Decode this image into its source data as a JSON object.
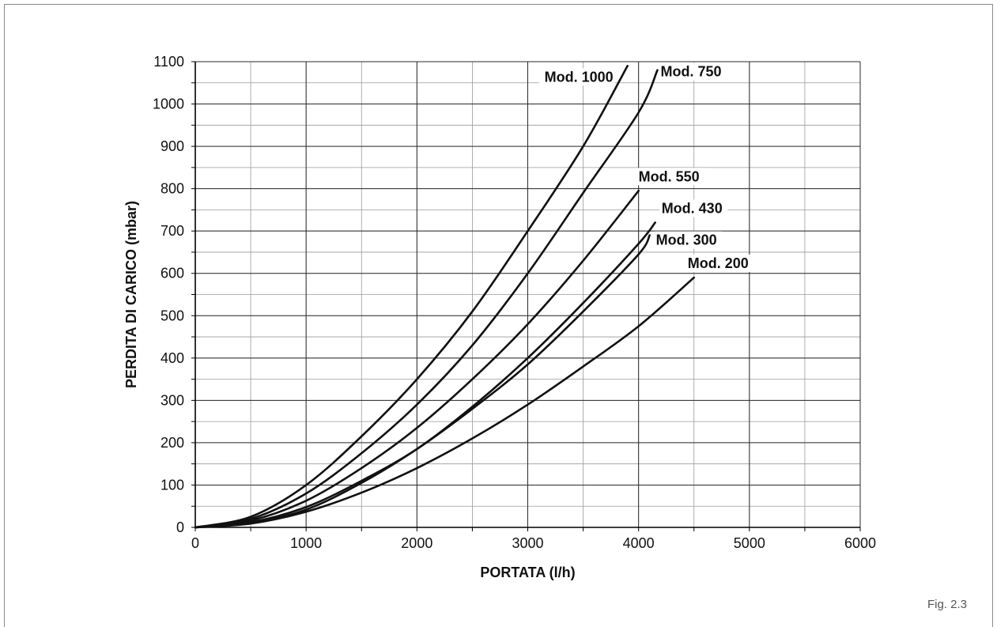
{
  "figure_label": "Fig. 2.3",
  "chart_data": {
    "type": "line",
    "xlabel": "PORTATA (l/h)",
    "ylabel": "PERDITA DI CARICO (mbar)",
    "xlim": [
      0,
      6000
    ],
    "ylim": [
      0,
      1100
    ],
    "x_ticks": [
      0,
      1000,
      2000,
      3000,
      4000,
      5000,
      6000
    ],
    "y_ticks": [
      0,
      100,
      200,
      300,
      400,
      500,
      600,
      700,
      800,
      900,
      1000,
      1100
    ],
    "x_minor_step": 500,
    "y_minor_step": 50,
    "grid": true,
    "series": [
      {
        "name": "Mod. 1000",
        "x": [
          0,
          500,
          1000,
          1500,
          2000,
          2500,
          3000,
          3500,
          3900
        ],
        "y": [
          0,
          25,
          100,
          215,
          350,
          510,
          700,
          900,
          1090
        ]
      },
      {
        "name": "Mod. 750",
        "x": [
          0,
          500,
          1000,
          1500,
          2000,
          2500,
          3000,
          3500,
          4000,
          4170
        ],
        "y": [
          0,
          20,
          80,
          175,
          290,
          430,
          600,
          790,
          980,
          1080
        ]
      },
      {
        "name": "Mod. 550",
        "x": [
          0,
          500,
          1000,
          1500,
          2000,
          2500,
          3000,
          3500,
          4000
        ],
        "y": [
          0,
          16,
          63,
          140,
          235,
          350,
          480,
          630,
          795
        ]
      },
      {
        "name": "Mod. 430",
        "x": [
          0,
          500,
          1000,
          1500,
          2000,
          2500,
          3000,
          3500,
          4000,
          4150
        ],
        "y": [
          0,
          12,
          48,
          110,
          185,
          285,
          400,
          530,
          670,
          720
        ]
      },
      {
        "name": "Mod. 300",
        "x": [
          0,
          500,
          1000,
          1500,
          2000,
          2500,
          3000,
          3500,
          4000,
          4100
        ],
        "y": [
          0,
          10,
          42,
          105,
          185,
          280,
          385,
          510,
          645,
          690
        ]
      },
      {
        "name": "Mod. 200",
        "x": [
          0,
          500,
          1000,
          1500,
          2000,
          2500,
          3000,
          3500,
          4000,
          4500
        ],
        "y": [
          0,
          9,
          37,
          82,
          140,
          210,
          290,
          380,
          475,
          590
        ]
      }
    ]
  }
}
